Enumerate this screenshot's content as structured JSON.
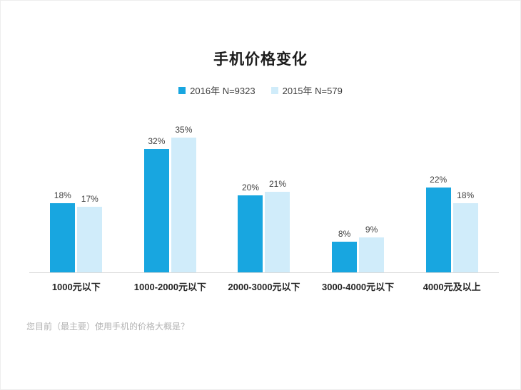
{
  "page": {
    "footnote": "您目前（最主要）使用手机的价格大概是？"
  },
  "chart_data": {
    "type": "bar",
    "title": "手机价格变化",
    "categories": [
      "1000元以下",
      "1000-2000元以下",
      "2000-3000元以下",
      "3000-4000元以下",
      "4000元及以上"
    ],
    "series": [
      {
        "name": "2016年 N=9323",
        "color": "#18a6e0",
        "values": [
          18,
          32,
          20,
          8,
          22
        ]
      },
      {
        "name": "2015年 N=579",
        "color": "#d0ecfa",
        "values": [
          17,
          35,
          21,
          9,
          18
        ]
      }
    ],
    "value_suffix": "%",
    "ylim": [
      0,
      43.5
    ],
    "grid": false,
    "legend_position": "top",
    "baseline_color": "#d9d9d9",
    "value_label_color": "#404040",
    "axis_label_color": "#262626"
  }
}
